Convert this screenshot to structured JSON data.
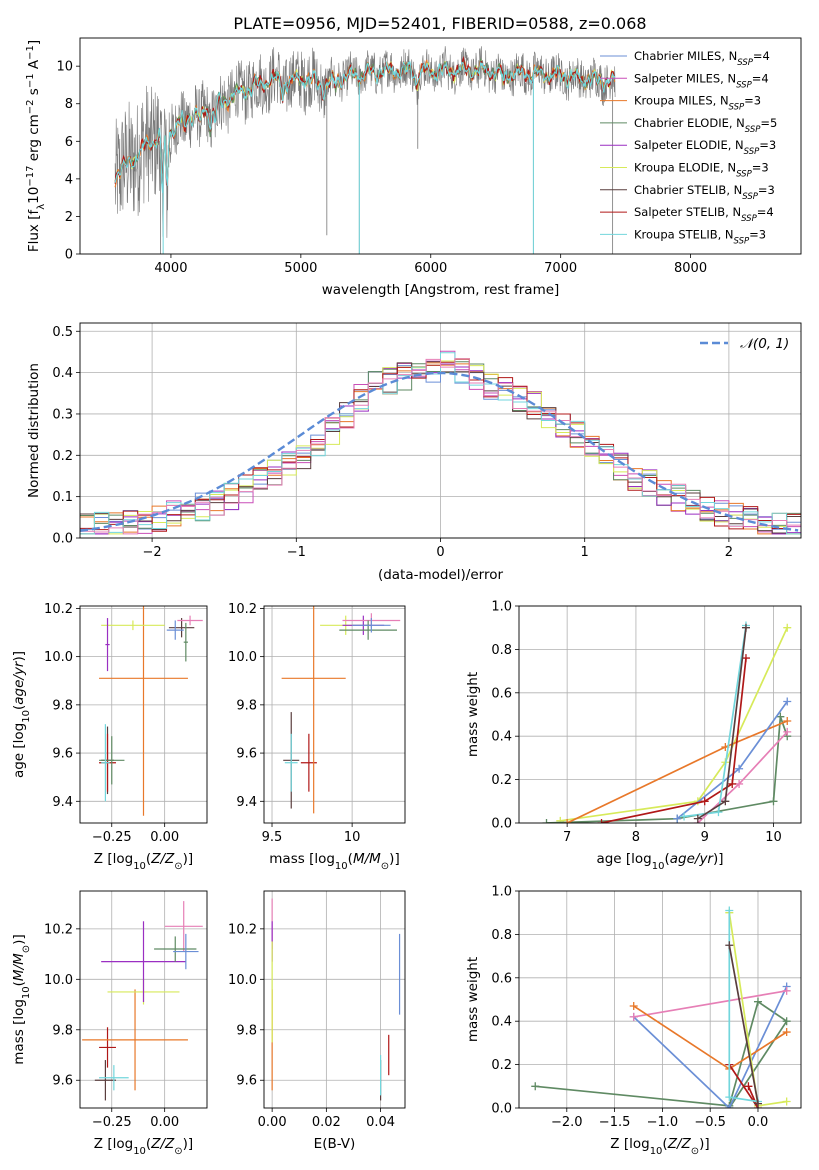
{
  "title": "PLATE=0956, MJD=52401, FIBERID=0588, z=0.068",
  "colors": {
    "Chabrier MILES": "#6b8fd6",
    "Salpeter MILES": "#c94fb8",
    "Kroupa MILES": "#e8782a",
    "Chabrier ELODIE": "#5f8a63",
    "Salpeter ELODIE": "#9a2fc2",
    "Kroupa ELODIE": "#d7ea5a",
    "Chabrier STELIB": "#5a3e3e",
    "Salpeter STELIB": "#b01818",
    "Kroupa STELIB": "#72d6dc",
    "pink": "#e67fb6",
    "normal": "#5b8bd6",
    "data": "#777777"
  },
  "chart_data": [
    {
      "type": "line",
      "id": "spectrum",
      "xlabel": "wavelength [Angstrom, rest frame]",
      "ylabel": "Flux [f_λ 10^-17 erg cm^-2 s^-1 A^-1]",
      "xlim": [
        3300,
        8850
      ],
      "ylim": [
        0,
        11.5
      ],
      "xticks": [
        4000,
        5000,
        6000,
        7000,
        8000
      ],
      "yticks": [
        0,
        2,
        4,
        6,
        8,
        10
      ],
      "grid": false,
      "legend_position": "right",
      "legend": [
        {
          "name": "Chabrier MILES",
          "n": "4",
          "color": "#6b8fd6"
        },
        {
          "name": "Salpeter MILES",
          "n": "4",
          "color": "#c94fb8"
        },
        {
          "name": "Kroupa MILES",
          "n": "3",
          "color": "#e8782a"
        },
        {
          "name": "Chabrier ELODIE",
          "n": "5",
          "color": "#5f8a63"
        },
        {
          "name": "Salpeter ELODIE",
          "n": "3",
          "color": "#9a2fc2"
        },
        {
          "name": "Kroupa ELODIE",
          "n": "3",
          "color": "#d7ea5a"
        },
        {
          "name": "Chabrier STELIB",
          "n": "3",
          "color": "#5a3e3e"
        },
        {
          "name": "Salpeter STELIB",
          "n": "4",
          "color": "#b01818"
        },
        {
          "name": "Kroupa STELIB",
          "n": "3",
          "color": "#72d6dc"
        }
      ],
      "continuum": [
        [
          3570,
          4.2
        ],
        [
          3700,
          5.0
        ],
        [
          3800,
          5.7
        ],
        [
          3900,
          6.2
        ],
        [
          4000,
          6.6
        ],
        [
          4100,
          7.2
        ],
        [
          4200,
          7.5
        ],
        [
          4300,
          7.6
        ],
        [
          4400,
          8.1
        ],
        [
          4500,
          8.5
        ],
        [
          4600,
          8.8
        ],
        [
          4700,
          9.1
        ],
        [
          4800,
          9.3
        ],
        [
          4900,
          9.1
        ],
        [
          5000,
          9.4
        ],
        [
          5100,
          9.2
        ],
        [
          5200,
          9.0
        ],
        [
          5300,
          9.4
        ],
        [
          5400,
          9.5
        ],
        [
          5500,
          9.6
        ],
        [
          5600,
          9.7
        ],
        [
          5800,
          9.8
        ],
        [
          6000,
          9.7
        ],
        [
          6200,
          9.8
        ],
        [
          6400,
          9.8
        ],
        [
          6600,
          9.6
        ],
        [
          6800,
          9.6
        ],
        [
          7000,
          9.5
        ],
        [
          7200,
          9.3
        ],
        [
          7400,
          9.2
        ]
      ],
      "absorption_lines": [
        [
          3934,
          3.0
        ],
        [
          3969,
          3.2
        ],
        [
          4102,
          6.5
        ],
        [
          4226,
          6.7
        ],
        [
          4304,
          6.8
        ],
        [
          4340,
          7.2
        ],
        [
          4861,
          8.5
        ],
        [
          5175,
          8.6
        ],
        [
          5270,
          8.9
        ],
        [
          5890,
          8.9
        ],
        [
          6563,
          9.0
        ]
      ],
      "spikes_down": [
        [
          5200,
          1.0
        ],
        [
          5450,
          0.0
        ],
        [
          5900,
          5.6
        ],
        [
          6790,
          0.0
        ],
        [
          7400,
          0.0
        ],
        [
          3920,
          0.0
        ]
      ]
    },
    {
      "type": "histogram",
      "id": "residuals",
      "xlabel": "(data-model)/error",
      "ylabel": "Normed distribution",
      "xlim": [
        -2.5,
        2.5
      ],
      "ylim": [
        0,
        0.52
      ],
      "xticks": [
        -2,
        -1,
        0,
        1,
        2
      ],
      "yticks": [
        0.0,
        0.1,
        0.2,
        0.3,
        0.4,
        0.5
      ],
      "grid": true,
      "legend": [
        {
          "name": "𝒩(0, 1)",
          "color": "#5b8bd6"
        }
      ],
      "bin_edges": [
        -2.5,
        -2.4,
        -2.3,
        -2.2,
        -2.1,
        -2.0,
        -1.9,
        -1.8,
        -1.7,
        -1.6,
        -1.5,
        -1.4,
        -1.3,
        -1.2,
        -1.1,
        -1.0,
        -0.9,
        -0.8,
        -0.7,
        -0.6,
        -0.5,
        -0.4,
        -0.3,
        -0.2,
        -0.1,
        0.0,
        0.1,
        0.2,
        0.3,
        0.4,
        0.5,
        0.6,
        0.7,
        0.8,
        0.9,
        1.0,
        1.1,
        1.2,
        1.3,
        1.4,
        1.5,
        1.6,
        1.7,
        1.8,
        1.9,
        2.0,
        2.1,
        2.2,
        2.3,
        2.4,
        2.5
      ],
      "base_values": [
        0.025,
        0.027,
        0.03,
        0.035,
        0.04,
        0.047,
        0.055,
        0.065,
        0.075,
        0.09,
        0.1,
        0.12,
        0.14,
        0.16,
        0.18,
        0.2,
        0.23,
        0.26,
        0.3,
        0.34,
        0.37,
        0.38,
        0.39,
        0.4,
        0.41,
        0.43,
        0.4,
        0.39,
        0.37,
        0.36,
        0.34,
        0.32,
        0.3,
        0.27,
        0.25,
        0.22,
        0.2,
        0.17,
        0.15,
        0.13,
        0.11,
        0.095,
        0.085,
        0.07,
        0.06,
        0.055,
        0.045,
        0.04,
        0.035,
        0.03
      ]
    },
    {
      "type": "errorbar",
      "id": "age-vs-Z",
      "xlabel": "Z [log10(Z/Z⊙)]",
      "ylabel": "age  [log10(age/yr)]",
      "xlim": [
        -0.4,
        0.2
      ],
      "ylim": [
        9.31,
        10.21
      ],
      "xticks": [
        -0.25,
        0.0
      ],
      "xtick_labels": [
        "−0.25",
        "0.00"
      ],
      "yticks": [
        9.4,
        9.6,
        9.8,
        10.0,
        10.2
      ],
      "grid": true,
      "points": [
        {
          "x": -0.27,
          "y": 9.57,
          "xe": 0.03,
          "ye": 0.14,
          "c": "Chabrier STELIB"
        },
        {
          "x": -0.27,
          "y": 9.56,
          "xe": 0.04,
          "ye": 0.12,
          "c": "Salpeter STELIB"
        },
        {
          "x": -0.25,
          "y": 9.57,
          "xe": 0.06,
          "ye": 0.1,
          "c": "Chabrier ELODIE"
        },
        {
          "x": -0.28,
          "y": 9.56,
          "xe": 0.02,
          "ye": 0.16,
          "c": "Kroupa STELIB"
        },
        {
          "x": -0.1,
          "y": 9.91,
          "xe": 0.21,
          "ye": 0.57,
          "c": "Kroupa MILES"
        },
        {
          "x": -0.15,
          "y": 10.13,
          "xe": 0.15,
          "ye": 0.02,
          "c": "Kroupa ELODIE"
        },
        {
          "x": -0.27,
          "y": 10.05,
          "xe": 0.01,
          "ye": 0.11,
          "c": "Salpeter ELODIE"
        },
        {
          "x": 0.08,
          "y": 10.12,
          "xe": 0.06,
          "ye": 0.04,
          "c": "Chabrier STELIB"
        },
        {
          "x": 0.12,
          "y": 10.15,
          "xe": 0.06,
          "ye": 0.02,
          "c": "pink"
        },
        {
          "x": 0.05,
          "y": 10.11,
          "xe": 0.04,
          "ye": 0.04,
          "c": "Chabrier MILES"
        },
        {
          "x": 0.1,
          "y": 10.06,
          "xe": 0.01,
          "ye": 0.08,
          "c": "Chabrier ELODIE"
        }
      ]
    },
    {
      "type": "errorbar",
      "id": "age-vs-mass",
      "xlabel": "mass [log10(M/M⊙)]",
      "ylabel": "",
      "xlim": [
        9.45,
        10.33
      ],
      "ylim": [
        9.31,
        10.21
      ],
      "xticks": [
        9.5,
        10.0
      ],
      "yticks": [
        9.4,
        9.6,
        9.8,
        10.0,
        10.2
      ],
      "grid": true,
      "points": [
        {
          "x": 9.62,
          "y": 9.57,
          "xe": 0.05,
          "ye": 0.2,
          "c": "Chabrier STELIB"
        },
        {
          "x": 9.62,
          "y": 9.56,
          "xe": 0.04,
          "ye": 0.12,
          "c": "Kroupa STELIB"
        },
        {
          "x": 9.73,
          "y": 9.56,
          "xe": 0.05,
          "ye": 0.12,
          "c": "Salpeter STELIB"
        },
        {
          "x": 9.76,
          "y": 9.91,
          "xe": 0.2,
          "ye": 0.56,
          "c": "Kroupa MILES"
        },
        {
          "x": 9.96,
          "y": 10.13,
          "xe": 0.16,
          "ye": 0.04,
          "c": "Kroupa ELODIE"
        },
        {
          "x": 10.07,
          "y": 10.13,
          "xe": 0.13,
          "ye": 0.04,
          "c": "Salpeter ELODIE"
        },
        {
          "x": 10.12,
          "y": 10.15,
          "xe": 0.18,
          "ye": 0.03,
          "c": "pink"
        },
        {
          "x": 10.1,
          "y": 10.11,
          "xe": 0.18,
          "ye": 0.04,
          "c": "Chabrier ELODIE"
        },
        {
          "x": 10.12,
          "y": 10.13,
          "xe": 0.12,
          "ye": 0.03,
          "c": "Chabrier MILES"
        }
      ]
    },
    {
      "type": "line",
      "id": "massweight-vs-age",
      "xlabel": "age  [log10(age/yr)]",
      "ylabel": "mass weight",
      "xlim": [
        6.3,
        10.4
      ],
      "ylim": [
        0,
        1.0
      ],
      "xticks": [
        7,
        8,
        9,
        10
      ],
      "yticks": [
        0.0,
        0.2,
        0.4,
        0.6,
        0.8,
        1.0
      ],
      "grid": true,
      "series": [
        {
          "c": "Kroupa ELODIE",
          "points": [
            [
              6.9,
              0.01
            ],
            [
              8.9,
              0.1
            ],
            [
              9.3,
              0.28
            ],
            [
              10.2,
              0.9
            ]
          ]
        },
        {
          "c": "Chabrier ELODIE",
          "points": [
            [
              6.7,
              0.0
            ],
            [
              8.6,
              0.02
            ],
            [
              10.0,
              0.1
            ],
            [
              10.1,
              0.49
            ],
            [
              10.2,
              0.4
            ]
          ]
        },
        {
          "c": "Kroupa MILES",
          "points": [
            [
              7.0,
              0.0
            ],
            [
              9.3,
              0.35
            ],
            [
              10.2,
              0.47
            ]
          ]
        },
        {
          "c": "Chabrier MILES",
          "points": [
            [
              8.6,
              0.02
            ],
            [
              9.5,
              0.25
            ],
            [
              10.2,
              0.56
            ]
          ]
        },
        {
          "c": "pink",
          "points": [
            [
              8.9,
              0.0
            ],
            [
              9.5,
              0.18
            ],
            [
              10.2,
              0.42
            ]
          ]
        },
        {
          "c": "Salpeter STELIB",
          "points": [
            [
              7.5,
              0.0
            ],
            [
              9.0,
              0.1
            ],
            [
              9.4,
              0.18
            ],
            [
              9.6,
              0.76
            ]
          ]
        },
        {
          "c": "Kroupa STELIB",
          "points": [
            [
              8.7,
              0.03
            ],
            [
              9.2,
              0.05
            ],
            [
              9.6,
              0.91
            ]
          ]
        },
        {
          "c": "Chabrier STELIB",
          "points": [
            [
              8.9,
              0.02
            ],
            [
              9.3,
              0.1
            ],
            [
              9.6,
              0.9
            ]
          ]
        }
      ]
    },
    {
      "type": "errorbar",
      "id": "mass-vs-Z",
      "xlabel": "Z [log10(Z/Z⊙)]",
      "ylabel": "mass [log10(M/M⊙)]",
      "xlim": [
        -0.4,
        0.2
      ],
      "ylim": [
        9.49,
        10.35
      ],
      "xticks": [
        -0.25,
        0.0
      ],
      "xtick_labels": [
        "−0.25",
        "0.00"
      ],
      "yticks": [
        9.6,
        9.8,
        10.0,
        10.2
      ],
      "grid": true,
      "points": [
        {
          "x": -0.27,
          "y": 9.73,
          "xe": 0.04,
          "ye": 0.08,
          "c": "Salpeter STELIB"
        },
        {
          "x": -0.28,
          "y": 9.6,
          "xe": 0.05,
          "ye": 0.08,
          "c": "Chabrier STELIB"
        },
        {
          "x": -0.24,
          "y": 9.61,
          "xe": 0.07,
          "ye": 0.05,
          "c": "Kroupa STELIB"
        },
        {
          "x": -0.14,
          "y": 9.76,
          "xe": 0.25,
          "ye": 0.2,
          "c": "Kroupa MILES"
        },
        {
          "x": -0.1,
          "y": 9.95,
          "xe": 0.17,
          "ye": 0.05,
          "c": "Kroupa ELODIE"
        },
        {
          "x": -0.1,
          "y": 10.07,
          "xe": 0.2,
          "ye": 0.16,
          "c": "Salpeter ELODIE"
        },
        {
          "x": 0.09,
          "y": 10.21,
          "xe": 0.09,
          "ye": 0.1,
          "c": "pink"
        },
        {
          "x": 0.05,
          "y": 10.12,
          "xe": 0.1,
          "ye": 0.05,
          "c": "Chabrier ELODIE"
        },
        {
          "x": 0.1,
          "y": 10.11,
          "xe": 0.06,
          "ye": 0.07,
          "c": "Chabrier MILES"
        }
      ]
    },
    {
      "type": "errorbar",
      "id": "mass-vs-ebv",
      "xlabel": "E(B-V)",
      "ylabel": "",
      "xlim": [
        -0.003,
        0.049
      ],
      "ylim": [
        9.49,
        10.35
      ],
      "xticks": [
        0.0,
        0.02,
        0.04
      ],
      "xtick_labels": [
        "0.00",
        "0.02",
        "0.04"
      ],
      "yticks": [
        9.6,
        9.8,
        10.0,
        10.2
      ],
      "grid": true,
      "points": [
        {
          "x": 0.0,
          "y": 10.22,
          "xe": 0.0,
          "ye": 0.1,
          "c": "pink"
        },
        {
          "x": 0.0,
          "y": 10.15,
          "xe": 0.0,
          "ye": 0.08,
          "c": "Salpeter ELODIE"
        },
        {
          "x": 0.0,
          "y": 9.76,
          "xe": 0.0,
          "ye": 0.2,
          "c": "Kroupa MILES"
        },
        {
          "x": 0.0,
          "y": 9.95,
          "xe": 0.0,
          "ye": 0.2,
          "c": "Kroupa ELODIE"
        },
        {
          "x": 0.047,
          "y": 10.02,
          "xe": 0.0,
          "ye": 0.16,
          "c": "Chabrier MILES"
        },
        {
          "x": 0.043,
          "y": 9.7,
          "xe": 0.0,
          "ye": 0.08,
          "c": "Salpeter STELIB"
        },
        {
          "x": 0.04,
          "y": 9.6,
          "xe": 0.0,
          "ye": 0.08,
          "c": "Chabrier STELIB"
        },
        {
          "x": 0.04,
          "y": 9.62,
          "xe": 0.0,
          "ye": 0.08,
          "c": "Kroupa STELIB"
        }
      ]
    },
    {
      "type": "line",
      "id": "massweight-vs-Z",
      "xlabel": "Z [log10(Z/Z⊙)]",
      "ylabel": "mass weight",
      "xlim": [
        -2.5,
        0.45
      ],
      "ylim": [
        0,
        1.0
      ],
      "xticks": [
        -2.0,
        -1.5,
        -1.0,
        -0.5,
        0.0
      ],
      "xtick_labels": [
        "−2.0",
        "−1.5",
        "−1.0",
        "−0.5",
        "0.0"
      ],
      "yticks": [
        0.0,
        0.2,
        0.4,
        0.6,
        0.8,
        1.0
      ],
      "grid": true,
      "series": [
        {
          "c": "Chabrier ELODIE",
          "points": [
            [
              -2.33,
              0.1
            ],
            [
              -0.3,
              0.01
            ],
            [
              0.0,
              0.49
            ],
            [
              0.3,
              0.4
            ],
            [
              -0.3,
              0.0
            ]
          ]
        },
        {
          "c": "Chabrier MILES",
          "points": [
            [
              -1.3,
              0.42
            ],
            [
              -0.3,
              0.0
            ],
            [
              0.3,
              0.56
            ]
          ]
        },
        {
          "c": "pink",
          "points": [
            [
              -1.3,
              0.42
            ],
            [
              0.3,
              0.54
            ]
          ]
        },
        {
          "c": "Kroupa MILES",
          "points": [
            [
              -1.3,
              0.47
            ],
            [
              -0.3,
              0.18
            ],
            [
              0.3,
              0.35
            ]
          ]
        },
        {
          "c": "Kroupa ELODIE",
          "points": [
            [
              -0.3,
              0.9
            ],
            [
              0.0,
              0.01
            ],
            [
              0.3,
              0.03
            ]
          ]
        },
        {
          "c": "Salpeter STELIB",
          "points": [
            [
              -0.3,
              0.2
            ],
            [
              0.0,
              0.0
            ],
            [
              -0.1,
              0.1
            ]
          ]
        },
        {
          "c": "Kroupa STELIB",
          "points": [
            [
              -0.3,
              0.91
            ],
            [
              -0.3,
              0.05
            ],
            [
              0.0,
              0.03
            ]
          ]
        },
        {
          "c": "Chabrier STELIB",
          "points": [
            [
              -0.3,
              0.75
            ],
            [
              0.0,
              0.02
            ]
          ]
        }
      ]
    }
  ]
}
